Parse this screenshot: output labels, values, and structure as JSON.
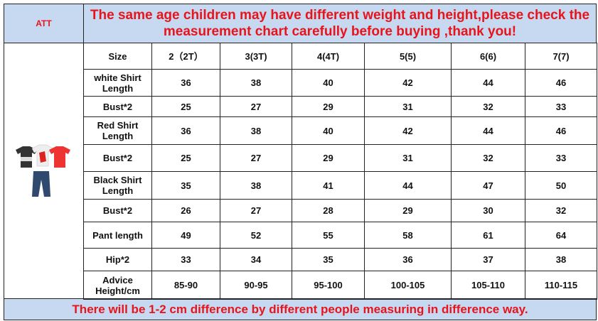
{
  "header": {
    "brand": "ATT",
    "title": "The same age children may have different weight and height,please check the measurement chart carefully before buying ,thank you!"
  },
  "table": {
    "columns": [
      "Size",
      "2（2T）",
      "3(3T)",
      "4(4T)",
      "5(5)",
      "6(6)",
      "7(7)"
    ],
    "rows": [
      [
        "white Shirt Length",
        36,
        38,
        40,
        42,
        44,
        46
      ],
      [
        "Bust*2",
        25,
        27,
        29,
        31,
        32,
        33
      ],
      [
        "Red Shirt Length",
        36,
        38,
        40,
        42,
        44,
        46
      ],
      [
        "Bust*2",
        25,
        27,
        29,
        31,
        32,
        33
      ],
      [
        "Black Shirt Length",
        35,
        38,
        41,
        44,
        47,
        50
      ],
      [
        "Bust*2",
        26,
        27,
        28,
        29,
        30,
        32
      ],
      [
        "Pant length",
        49,
        52,
        55,
        58,
        61,
        64
      ],
      [
        "Hip*2",
        33,
        34,
        35,
        36,
        37,
        38
      ],
      [
        "Advice Height/cm",
        "85-90",
        "90-95",
        "95-100",
        "100-105",
        "105-110",
        "110-115"
      ]
    ]
  },
  "footer": {
    "note": "There will be 1-2 cm difference by different people measuring in difference way."
  }
}
